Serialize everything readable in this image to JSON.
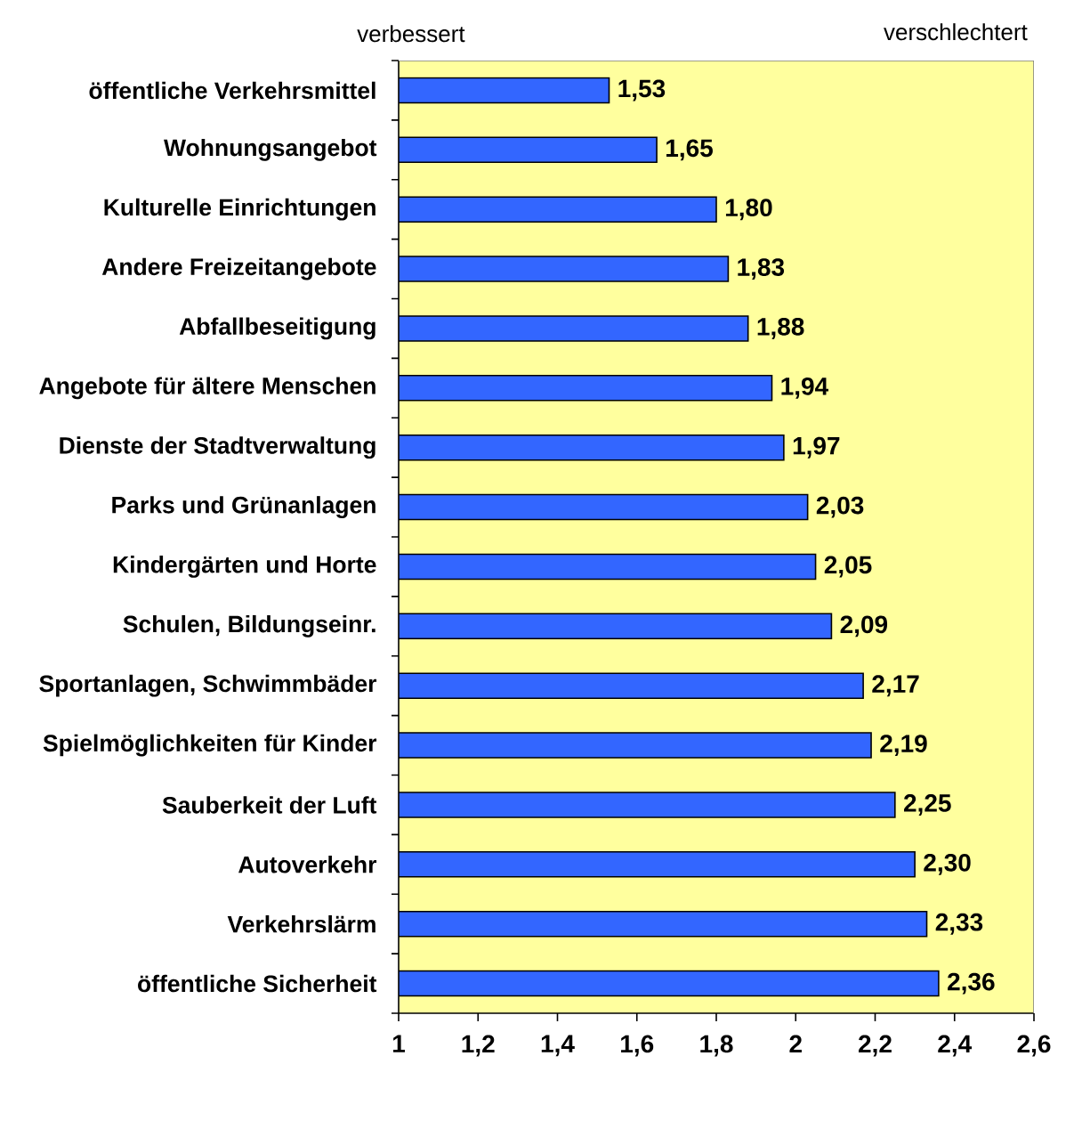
{
  "chart_data": {
    "type": "bar",
    "orientation": "horizontal",
    "annotations": [
      "verbessert",
      "verschlechtert"
    ],
    "categories": [
      "öffentliche Verkehrsmittel",
      "Wohnungsangebot",
      "Kulturelle Einrichtungen",
      "Andere Freizeitangebote",
      "Abfallbeseitigung",
      "Angebote für ältere Menschen",
      "Dienste der Stadtverwaltung",
      "Parks und Grünanlagen",
      "Kindergärten und Horte",
      "Schulen, Bildungseinr.",
      "Sportanlagen, Schwimmbäder",
      "Spielmöglichkeiten für Kinder",
      "Sauberkeit der Luft",
      "Autoverkehr",
      "Verkehrslärm",
      "öffentliche Sicherheit"
    ],
    "values": [
      1.53,
      1.65,
      1.8,
      1.83,
      1.88,
      1.94,
      1.97,
      2.03,
      2.05,
      2.09,
      2.17,
      2.19,
      2.25,
      2.3,
      2.33,
      2.36
    ],
    "value_labels": [
      "1,53",
      "1,65",
      "1,80",
      "1,83",
      "1,88",
      "1,94",
      "1,97",
      "2,03",
      "2,05",
      "2,09",
      "2,17",
      "2,19",
      "2,25",
      "2,30",
      "2,33",
      "2,36"
    ],
    "color": "#3366ff",
    "xlim": [
      1,
      2.6
    ],
    "xticks": [
      1,
      {
        "value": 1.2,
        "label": "1,2"
      },
      {
        "value": 1.4,
        "label": "1,4"
      },
      {
        "value": 1.6,
        "label": "1,6"
      },
      {
        "value": 1.8,
        "label": "1,8"
      },
      2,
      {
        "value": 2.2,
        "label": "2,2"
      },
      {
        "value": 2.4,
        "label": "2,4"
      },
      {
        "value": 2.6,
        "label": "2,6"
      }
    ]
  }
}
